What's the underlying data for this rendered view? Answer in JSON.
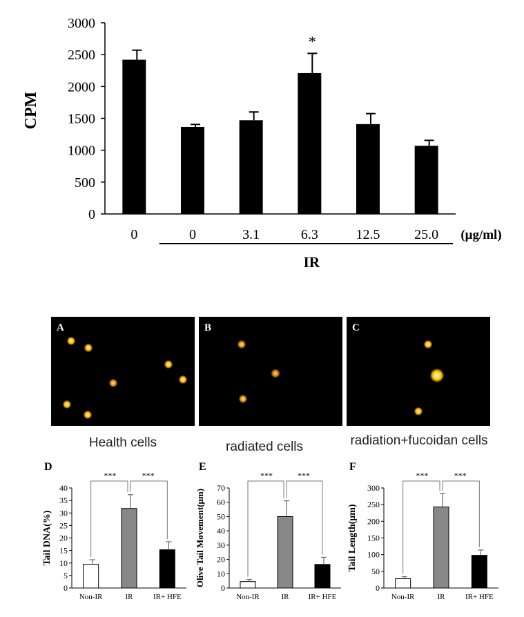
{
  "chart_data": [
    {
      "type": "bar",
      "ylabel": "CPM",
      "ylim": [
        0,
        3000
      ],
      "yticks": [
        "0",
        "500",
        "1000",
        "1500",
        "2000",
        "2500",
        "3000"
      ],
      "categories": [
        "0",
        "0",
        "3.1",
        "6.3",
        "12.5",
        "25.0"
      ],
      "values": [
        2420,
        1365,
        1470,
        2210,
        1410,
        1070
      ],
      "errors": [
        150,
        40,
        130,
        310,
        165,
        85
      ],
      "significance": [
        "",
        "",
        "",
        "*",
        "",
        ""
      ],
      "unit_label": "(μg/ml)",
      "group_label": "IR",
      "bar_color": "#000000"
    },
    {
      "type": "bar",
      "panel": "D",
      "ylabel": "Tail DNA(%)",
      "ylim": [
        0,
        40
      ],
      "yticks": [
        "0",
        "5",
        "10",
        "15",
        "20",
        "25",
        "30",
        "35",
        "40"
      ],
      "categories": [
        "Non-IR",
        "IR",
        "IR+ HFE"
      ],
      "values": [
        9.5,
        31.8,
        15.3
      ],
      "errors": [
        1.8,
        5.5,
        3.2
      ],
      "colors": [
        "#ffffff",
        "#888888",
        "#000000"
      ],
      "significance": [
        "***",
        "***"
      ]
    },
    {
      "type": "bar",
      "panel": "E",
      "ylabel": "Olive Tail Movement(μm)",
      "ylim": [
        0,
        70
      ],
      "yticks": [
        "0",
        "10",
        "20",
        "30",
        "40",
        "50",
        "60",
        "70"
      ],
      "categories": [
        "Non-IR",
        "IR",
        "IR+ HFE"
      ],
      "values": [
        4.5,
        50,
        16.5
      ],
      "errors": [
        1.5,
        11,
        5
      ],
      "colors": [
        "#ffffff",
        "#888888",
        "#000000"
      ],
      "significance": [
        "***",
        "***"
      ]
    },
    {
      "type": "bar",
      "panel": "F",
      "ylabel": "Tail Length(μm)",
      "ylim": [
        0,
        300
      ],
      "yticks": [
        "0",
        "50",
        "100",
        "150",
        "200",
        "250",
        "300"
      ],
      "categories": [
        "Non-IR",
        "IR",
        "IR+ HFE"
      ],
      "values": [
        28,
        243,
        98
      ],
      "errors": [
        6,
        40,
        16
      ],
      "colors": [
        "#ffffff",
        "#888888",
        "#000000"
      ],
      "significance": [
        "***",
        "***"
      ]
    }
  ],
  "panels": [
    {
      "letter": "A",
      "caption": "Health cells"
    },
    {
      "letter": "B",
      "caption": "radiated cells"
    },
    {
      "letter": "C",
      "caption": "radiation+fucoidan cells"
    }
  ]
}
